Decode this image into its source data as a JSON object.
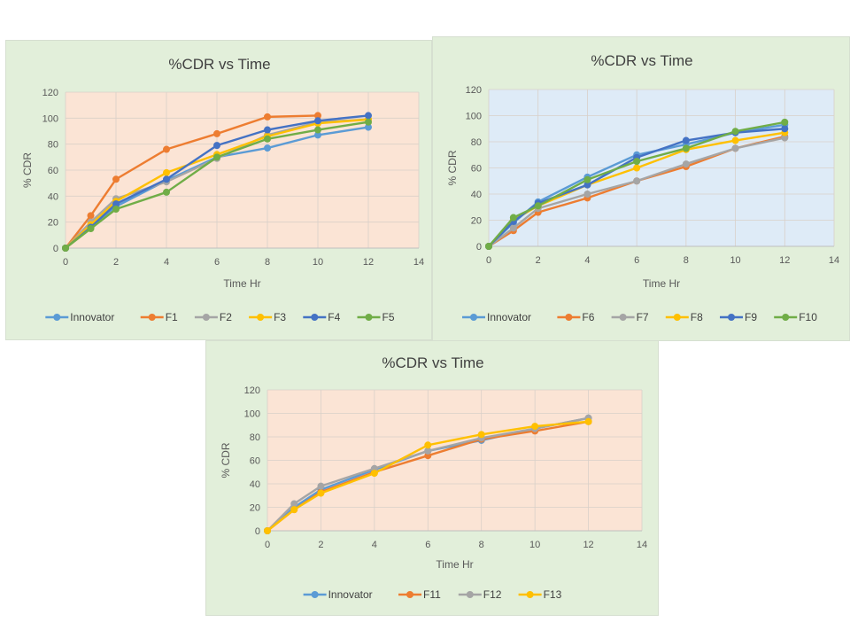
{
  "chart_data": [
    {
      "type": "line",
      "title": "%CDR vs Time",
      "xlabel": "Time Hr",
      "ylabel": "% CDR",
      "xlim": [
        0,
        14
      ],
      "ylim": [
        0,
        120
      ],
      "xticks": [
        0,
        2,
        4,
        6,
        8,
        10,
        12,
        14
      ],
      "yticks": [
        0,
        20,
        40,
        60,
        80,
        100,
        120
      ],
      "grid": true,
      "legend_position": "bottom",
      "plot_background": "#fbe4d5",
      "series": [
        {
          "name": "Innovator",
          "color": "#5b9bd5",
          "x": [
            0,
            1,
            2,
            4,
            6,
            8,
            10,
            12
          ],
          "y": [
            0,
            17,
            32,
            52,
            70,
            77,
            87,
            93
          ]
        },
        {
          "name": "F1",
          "color": "#ed7d31",
          "x": [
            0,
            1,
            2,
            4,
            6,
            8,
            10
          ],
          "y": [
            0,
            25,
            53,
            76,
            88,
            101,
            102
          ]
        },
        {
          "name": "F2",
          "color": "#a5a5a5",
          "x": [
            0,
            1,
            2,
            4,
            6,
            8,
            10,
            12
          ],
          "y": [
            0,
            20,
            38,
            51,
            69,
            87,
            97,
            99
          ]
        },
        {
          "name": "F3",
          "color": "#ffc000",
          "x": [
            0,
            1,
            2,
            4,
            6,
            8,
            10,
            12
          ],
          "y": [
            0,
            18,
            36,
            58,
            72,
            86,
            96,
            99
          ]
        },
        {
          "name": "F4",
          "color": "#4472c4",
          "x": [
            0,
            1,
            2,
            4,
            6,
            8,
            10,
            12
          ],
          "y": [
            0,
            16,
            34,
            53,
            79,
            91,
            98,
            102
          ]
        },
        {
          "name": "F5",
          "color": "#70ad47",
          "x": [
            0,
            1,
            2,
            4,
            6,
            8,
            10,
            12
          ],
          "y": [
            0,
            15,
            30,
            43,
            70,
            84,
            91,
            97
          ]
        }
      ]
    },
    {
      "type": "line",
      "title": "%CDR vs Time",
      "xlabel": "Time Hr",
      "ylabel": "% CDR",
      "xlim": [
        0,
        14
      ],
      "ylim": [
        0,
        120
      ],
      "xticks": [
        0,
        2,
        4,
        6,
        8,
        10,
        12,
        14
      ],
      "yticks": [
        0,
        20,
        40,
        60,
        80,
        100,
        120
      ],
      "grid": true,
      "legend_position": "bottom",
      "plot_background": "#deebf7",
      "series": [
        {
          "name": "Innovator",
          "color": "#5b9bd5",
          "x": [
            0,
            1,
            2,
            4,
            6,
            8,
            10,
            12
          ],
          "y": [
            0,
            18,
            34,
            53,
            70,
            78,
            87,
            93
          ]
        },
        {
          "name": "F6",
          "color": "#ed7d31",
          "x": [
            0,
            1,
            2,
            4,
            6,
            8,
            10,
            12
          ],
          "y": [
            0,
            12,
            26,
            37,
            50,
            61,
            75,
            84
          ]
        },
        {
          "name": "F7",
          "color": "#a5a5a5",
          "x": [
            0,
            1,
            2,
            4,
            6,
            8,
            10,
            12
          ],
          "y": [
            0,
            14,
            29,
            40,
            50,
            63,
            75,
            83
          ]
        },
        {
          "name": "F8",
          "color": "#ffc000",
          "x": [
            0,
            1,
            2,
            4,
            6,
            8,
            10,
            12
          ],
          "y": [
            0,
            20,
            31,
            47,
            60,
            74,
            81,
            87
          ]
        },
        {
          "name": "F9",
          "color": "#4472c4",
          "x": [
            0,
            1,
            2,
            4,
            6,
            8,
            10,
            12
          ],
          "y": [
            0,
            19,
            33,
            47,
            68,
            81,
            87,
            90
          ]
        },
        {
          "name": "F10",
          "color": "#70ad47",
          "x": [
            0,
            1,
            2,
            4,
            6,
            8,
            10,
            12
          ],
          "y": [
            0,
            22,
            31,
            51,
            65,
            75,
            88,
            95
          ]
        }
      ]
    },
    {
      "type": "line",
      "title": "%CDR vs Time",
      "xlabel": "Time Hr",
      "ylabel": "% CDR",
      "xlim": [
        0,
        14
      ],
      "ylim": [
        0,
        120
      ],
      "xticks": [
        0,
        2,
        4,
        6,
        8,
        10,
        12,
        14
      ],
      "yticks": [
        0,
        20,
        40,
        60,
        80,
        100,
        120
      ],
      "grid": true,
      "legend_position": "bottom",
      "plot_background": "#fbe4d5",
      "series": [
        {
          "name": "Innovator",
          "color": "#5b9bd5",
          "x": [
            0,
            1,
            2,
            4,
            6,
            8,
            10,
            12
          ],
          "y": [
            0,
            20,
            35,
            52,
            68,
            77,
            87,
            96
          ]
        },
        {
          "name": "F11",
          "color": "#ed7d31",
          "x": [
            0,
            1,
            2,
            4,
            6,
            8,
            10,
            12
          ],
          "y": [
            0,
            18,
            33,
            50,
            64,
            78,
            85,
            93
          ]
        },
        {
          "name": "F12",
          "color": "#a5a5a5",
          "x": [
            0,
            1,
            2,
            4,
            6,
            8,
            10,
            12
          ],
          "y": [
            0,
            23,
            38,
            53,
            68,
            79,
            87,
            96
          ]
        },
        {
          "name": "F13",
          "color": "#ffc000",
          "x": [
            0,
            1,
            2,
            4,
            6,
            8,
            10,
            12
          ],
          "y": [
            0,
            18,
            32,
            49,
            73,
            82,
            89,
            93
          ]
        }
      ]
    }
  ]
}
